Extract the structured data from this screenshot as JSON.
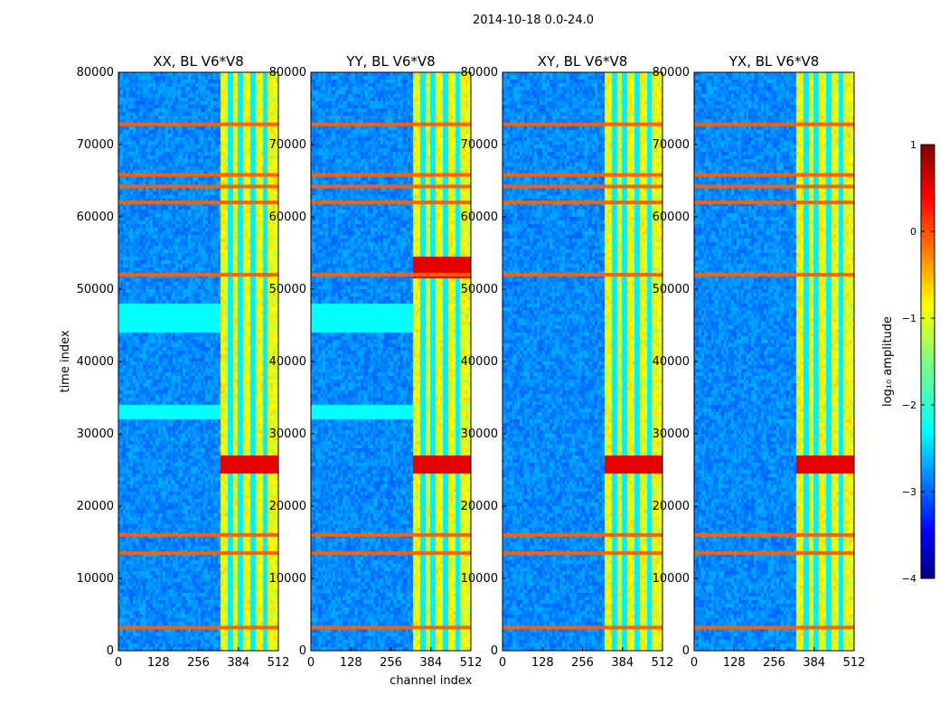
{
  "figure": {
    "suptitle": "2014-10-18 0.0-24.0"
  },
  "chart_data": [
    {
      "type": "heatmap",
      "title": "XX, BL V6*V8",
      "xlabel": "",
      "ylabel": "time index",
      "xlim": [
        0,
        512
      ],
      "ylim": [
        0,
        80000
      ],
      "xticks": [
        "0",
        "128",
        "256",
        "384",
        "512"
      ],
      "yticks": [
        "0",
        "10000",
        "20000",
        "30000",
        "40000",
        "50000",
        "60000",
        "70000",
        "80000"
      ],
      "z_scale": "log10 amplitude",
      "features": {
        "hot_channels": [
          325,
          512
        ],
        "orange_bands_time": [
          3200,
          13500,
          16000,
          52000,
          62000,
          64200,
          65800,
          72800
        ],
        "red_burst_time": [
          24500,
          27000
        ],
        "cyan_bands_time": [
          33000,
          45000,
          47000
        ]
      }
    },
    {
      "type": "heatmap",
      "title": "YY, BL V6*V8",
      "xlabel": "channel index",
      "ylabel": "",
      "xlim": [
        0,
        512
      ],
      "ylim": [
        0,
        80000
      ],
      "xticks": [
        "0",
        "128",
        "256",
        "384",
        "512"
      ],
      "yticks": [
        "0",
        "10000",
        "20000",
        "30000",
        "40000",
        "50000",
        "60000",
        "70000",
        "80000"
      ],
      "z_scale": "log10 amplitude",
      "features": {
        "hot_channels": [
          325,
          512
        ],
        "orange_bands_time": [
          3200,
          13500,
          16000,
          52000,
          62000,
          64200,
          65800,
          72800
        ],
        "red_burst_time": [
          24500,
          27000,
          51500,
          54500
        ],
        "cyan_bands_time": [
          33000,
          45000,
          47000
        ]
      }
    },
    {
      "type": "heatmap",
      "title": "XY, BL V6*V8",
      "xlabel": "",
      "ylabel": "",
      "xlim": [
        0,
        512
      ],
      "ylim": [
        0,
        80000
      ],
      "xticks": [
        "0",
        "128",
        "256",
        "384",
        "512"
      ],
      "yticks": [
        "0",
        "10000",
        "20000",
        "30000",
        "40000",
        "50000",
        "60000",
        "70000",
        "80000"
      ],
      "z_scale": "log10 amplitude",
      "features": {
        "hot_channels": [
          325,
          512
        ],
        "orange_bands_time": [
          3200,
          13500,
          16000,
          52000,
          62000,
          64200,
          65800,
          72800
        ],
        "red_burst_time": [
          24500,
          27000
        ],
        "cyan_bands_time": []
      }
    },
    {
      "type": "heatmap",
      "title": "YX, BL V6*V8",
      "xlabel": "",
      "ylabel": "",
      "xlim": [
        0,
        512
      ],
      "ylim": [
        0,
        80000
      ],
      "xticks": [
        "0",
        "128",
        "256",
        "384",
        "512"
      ],
      "yticks": [
        "0",
        "10000",
        "20000",
        "30000",
        "40000",
        "50000",
        "60000",
        "70000",
        "80000"
      ],
      "z_scale": "log10 amplitude",
      "features": {
        "hot_channels": [
          325,
          512
        ],
        "orange_bands_time": [
          3200,
          13500,
          16000,
          52000,
          62000,
          64200,
          65800,
          72800
        ],
        "red_burst_time": [
          24500,
          27000
        ],
        "cyan_bands_time": []
      }
    }
  ],
  "colorbar": {
    "label": "log₁₀ amplitude",
    "range": [
      -4,
      1
    ],
    "ticks": [
      "1",
      "0",
      "−1",
      "−2",
      "−3",
      "−4"
    ],
    "colormap": "jet",
    "colors": [
      "#00007f",
      "#0000ff",
      "#007fff",
      "#00ffff",
      "#7fff7f",
      "#ffff00",
      "#ff7f00",
      "#ff0000",
      "#7f0000"
    ]
  }
}
